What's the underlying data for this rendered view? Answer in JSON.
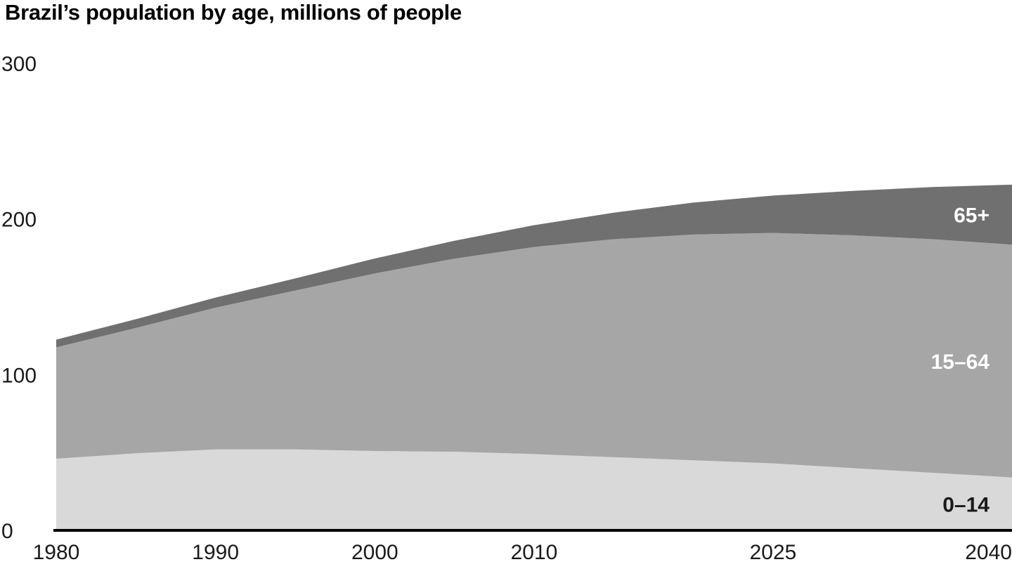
{
  "page": {
    "title": "Brazil’s population by age, millions of people"
  },
  "chart_data": {
    "type": "area",
    "stacked": true,
    "title": "Brazil’s population by age, millions of people",
    "xlabel": "",
    "ylabel": "millions of people",
    "x": [
      1980,
      1985,
      1990,
      1995,
      2000,
      2005,
      2010,
      2015,
      2020,
      2025,
      2030,
      2035,
      2040
    ],
    "xlim": [
      1980,
      2040
    ],
    "ylim": [
      0,
      300
    ],
    "x_ticks": [
      1980,
      1990,
      2000,
      2010,
      2025,
      2040
    ],
    "y_ticks": [
      300,
      200,
      100,
      0
    ],
    "grid": false,
    "legend_position": "labels-inside-right",
    "background_color": "#ffffff",
    "axis_line_color": "#000000",
    "tick_label_color": "#1a1a1a",
    "series": [
      {
        "key": "age-0-14",
        "label": "0–14",
        "color": "#d9d9d9",
        "label_color": "#1a1a1a",
        "values": [
          46,
          49.5,
          52,
          52,
          51,
          50.5,
          49,
          47,
          45,
          43,
          40,
          37,
          34
        ]
      },
      {
        "key": "age-15-64",
        "label": "15–64",
        "color": "#a6a6a6",
        "label_color": "#ffffff",
        "values": [
          71.5,
          80.5,
          91,
          102,
          114,
          124,
          133,
          140,
          145,
          148,
          149.5,
          150,
          149.5
        ]
      },
      {
        "key": "age-65-plus",
        "label": "65+",
        "color": "#707070",
        "label_color": "#ffffff",
        "values": [
          5,
          5.6,
          6.5,
          7.8,
          9.6,
          11.5,
          14,
          17,
          20.5,
          24,
          28.5,
          33.5,
          38.5
        ]
      }
    ]
  }
}
